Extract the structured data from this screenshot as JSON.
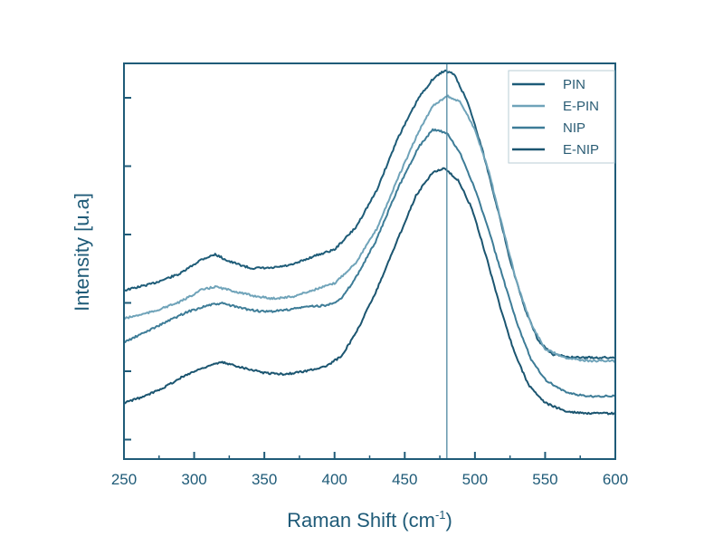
{
  "chart_data": {
    "type": "line",
    "xlabel": "Raman Shift (cm",
    "xlabel_sup": "-1",
    "xlabel_close": ")",
    "ylabel": "Intensity [u.a]",
    "xlim": [
      250,
      600
    ],
    "ylim": [
      0,
      1
    ],
    "x_ticks": [
      250,
      300,
      350,
      400,
      450,
      500,
      550,
      600
    ],
    "y_ticks_count": 6,
    "grid": false,
    "legend_position": "top-right",
    "reference_line_x": 480,
    "series": [
      {
        "name": "PIN",
        "color": "#1e5c78",
        "points": [
          [
            250,
            0.408
          ],
          [
            270,
            0.426
          ],
          [
            290,
            0.453
          ],
          [
            305,
            0.491
          ],
          [
            315,
            0.505
          ],
          [
            325,
            0.486
          ],
          [
            340,
            0.468
          ],
          [
            355,
            0.468
          ],
          [
            370,
            0.477
          ],
          [
            385,
            0.5
          ],
          [
            400,
            0.518
          ],
          [
            415,
            0.577
          ],
          [
            430,
            0.677
          ],
          [
            445,
            0.818
          ],
          [
            460,
            0.927
          ],
          [
            470,
            0.977
          ],
          [
            478,
            1.0
          ],
          [
            485,
            0.991
          ],
          [
            495,
            0.914
          ],
          [
            505,
            0.791
          ],
          [
            515,
            0.645
          ],
          [
            525,
            0.491
          ],
          [
            535,
            0.364
          ],
          [
            545,
            0.273
          ],
          [
            555,
            0.236
          ],
          [
            570,
            0.227
          ],
          [
            585,
            0.227
          ],
          [
            600,
            0.227
          ]
        ]
      },
      {
        "name": "E-PIN",
        "color": "#6fa3b9",
        "points": [
          [
            250,
            0.332
          ],
          [
            270,
            0.35
          ],
          [
            290,
            0.377
          ],
          [
            305,
            0.409
          ],
          [
            315,
            0.418
          ],
          [
            325,
            0.409
          ],
          [
            340,
            0.395
          ],
          [
            355,
            0.386
          ],
          [
            370,
            0.391
          ],
          [
            385,
            0.409
          ],
          [
            400,
            0.427
          ],
          [
            415,
            0.482
          ],
          [
            430,
            0.573
          ],
          [
            445,
            0.709
          ],
          [
            460,
            0.836
          ],
          [
            470,
            0.905
          ],
          [
            480,
            0.932
          ],
          [
            490,
            0.914
          ],
          [
            500,
            0.841
          ],
          [
            510,
            0.727
          ],
          [
            520,
            0.573
          ],
          [
            530,
            0.427
          ],
          [
            540,
            0.318
          ],
          [
            550,
            0.25
          ],
          [
            565,
            0.227
          ],
          [
            580,
            0.218
          ],
          [
            600,
            0.218
          ]
        ]
      },
      {
        "name": "NIP",
        "color": "#3d7c97",
        "points": [
          [
            250,
            0.268
          ],
          [
            265,
            0.295
          ],
          [
            280,
            0.323
          ],
          [
            295,
            0.35
          ],
          [
            310,
            0.368
          ],
          [
            320,
            0.373
          ],
          [
            335,
            0.359
          ],
          [
            350,
            0.35
          ],
          [
            365,
            0.355
          ],
          [
            380,
            0.364
          ],
          [
            395,
            0.368
          ],
          [
            405,
            0.386
          ],
          [
            415,
            0.441
          ],
          [
            430,
            0.545
          ],
          [
            445,
            0.682
          ],
          [
            460,
            0.795
          ],
          [
            470,
            0.841
          ],
          [
            480,
            0.832
          ],
          [
            490,
            0.773
          ],
          [
            500,
            0.682
          ],
          [
            510,
            0.568
          ],
          [
            520,
            0.441
          ],
          [
            530,
            0.318
          ],
          [
            540,
            0.223
          ],
          [
            550,
            0.168
          ],
          [
            565,
            0.132
          ],
          [
            580,
            0.123
          ],
          [
            600,
            0.123
          ]
        ]
      },
      {
        "name": "E-NIP",
        "color": "#1b5570",
        "points": [
          [
            250,
            0.105
          ],
          [
            265,
            0.123
          ],
          [
            280,
            0.15
          ],
          [
            295,
            0.182
          ],
          [
            310,
            0.205
          ],
          [
            320,
            0.214
          ],
          [
            335,
            0.2
          ],
          [
            350,
            0.186
          ],
          [
            365,
            0.182
          ],
          [
            380,
            0.191
          ],
          [
            395,
            0.205
          ],
          [
            405,
            0.232
          ],
          [
            415,
            0.291
          ],
          [
            430,
            0.409
          ],
          [
            445,
            0.545
          ],
          [
            458,
            0.664
          ],
          [
            470,
            0.727
          ],
          [
            478,
            0.736
          ],
          [
            488,
            0.705
          ],
          [
            498,
            0.627
          ],
          [
            508,
            0.5
          ],
          [
            518,
            0.364
          ],
          [
            528,
            0.241
          ],
          [
            538,
            0.155
          ],
          [
            550,
            0.105
          ],
          [
            565,
            0.082
          ],
          [
            580,
            0.077
          ],
          [
            600,
            0.077
          ]
        ]
      }
    ]
  }
}
